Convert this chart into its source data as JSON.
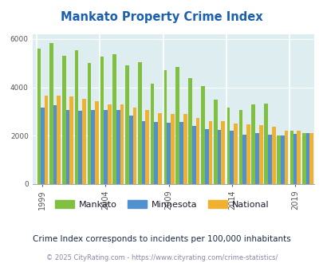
{
  "title": "Mankato Property Crime Index",
  "subtitle": "Crime Index corresponds to incidents per 100,000 inhabitants",
  "footer": "© 2025 CityRating.com - https://www.cityrating.com/crime-statistics/",
  "years": [
    1999,
    2000,
    2001,
    2002,
    2003,
    2004,
    2005,
    2006,
    2007,
    2008,
    2009,
    2010,
    2011,
    2012,
    2013,
    2014,
    2015,
    2016,
    2017,
    2018,
    2019,
    2020
  ],
  "mankato": [
    5600,
    5850,
    5300,
    5530,
    5000,
    5280,
    5380,
    4900,
    5050,
    4150,
    4700,
    4830,
    4380,
    4060,
    3480,
    3160,
    3050,
    3280,
    3330,
    2010,
    2200,
    2110
  ],
  "minnesota": [
    3150,
    3250,
    3080,
    3020,
    3080,
    3080,
    3050,
    2830,
    2600,
    2560,
    2550,
    2560,
    2400,
    2280,
    2250,
    2210,
    2050,
    2120,
    2040,
    2020,
    2080,
    2100
  ],
  "national": [
    3650,
    3650,
    3620,
    3520,
    3430,
    3310,
    3300,
    3180,
    3050,
    2920,
    2900,
    2890,
    2750,
    2620,
    2600,
    2500,
    2480,
    2450,
    2380,
    2200,
    2200,
    2100
  ],
  "colors": {
    "mankato": "#80c040",
    "minnesota": "#5090d0",
    "national": "#f0b030",
    "background": "#deeef0",
    "title": "#1a5fb0",
    "legend_text": "#1a1a2e",
    "subtitle": "#1a2a4a",
    "footer": "#8888aa",
    "grid": "#ffffff",
    "divider": "#ffffff"
  },
  "ylim": [
    0,
    6200
  ],
  "yticks": [
    0,
    2000,
    4000,
    6000
  ],
  "xtick_years": [
    1999,
    2004,
    2009,
    2014,
    2019
  ],
  "bar_width": 0.3
}
